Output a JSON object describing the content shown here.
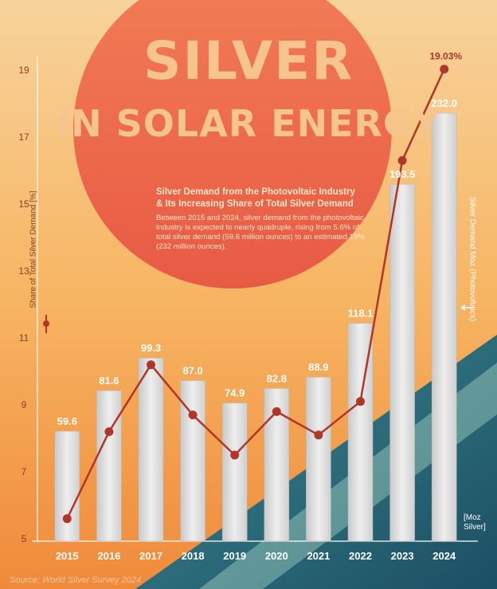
{
  "header": {
    "title_line1": "SILVER",
    "title_line2": "IN SOLAR ENERGY",
    "subtitle_line1": "Silver Demand from the Photovoltaic Industry",
    "subtitle_line2": "& Its Increasing Share of Total Silver Demand",
    "description": "Between 2015 and 2024, silver demand from the photovoltaic industry is expected to nearly quadruple, rising from 5.6% of total silver demand (59.6 million ounces) to an estimated 19% (232 million ounces)."
  },
  "footer": {
    "source": "Source: World Silver Survey 2024"
  },
  "colors": {
    "line": "#b0362a",
    "bar": "#dcdcdc",
    "sun": "#ee6448",
    "title": "#f6c58f"
  },
  "chart_data": {
    "type": "bar",
    "categories": [
      "2015",
      "2016",
      "2017",
      "2018",
      "2019",
      "2020",
      "2021",
      "2022",
      "2023",
      "2024"
    ],
    "series": [
      {
        "name": "Silver Demand Moz (Photovoltaics)",
        "type": "bar",
        "axis": "right",
        "values": [
          59.6,
          81.6,
          99.3,
          87.0,
          74.9,
          82.8,
          88.9,
          118.1,
          193.5,
          232.0
        ],
        "labels": [
          "59.6",
          "81.6",
          "99.3",
          "87.0",
          "74.9",
          "82.8",
          "88.9",
          "118.1",
          "193.5",
          "232.0"
        ]
      },
      {
        "name": "Share of Total Silver Demand [%]",
        "type": "line",
        "axis": "left",
        "values": [
          5.6,
          8.2,
          10.2,
          8.7,
          7.5,
          8.8,
          8.1,
          9.1,
          16.3,
          19.03
        ],
        "annotation": "19.03%"
      }
    ],
    "y_left": {
      "label": "Share of Total Silver Demand [%]",
      "ticks": [
        "5",
        "7",
        "9",
        "11",
        "13",
        "15",
        "17",
        "19"
      ],
      "range": [
        5,
        19
      ]
    },
    "y_right": {
      "label": "Silver Demand Moz (Photovoltaics)",
      "unit_line1": "[Moz",
      "unit_line2": "Silver]",
      "range": [
        0,
        232
      ]
    },
    "legend": "none",
    "grid": false
  }
}
